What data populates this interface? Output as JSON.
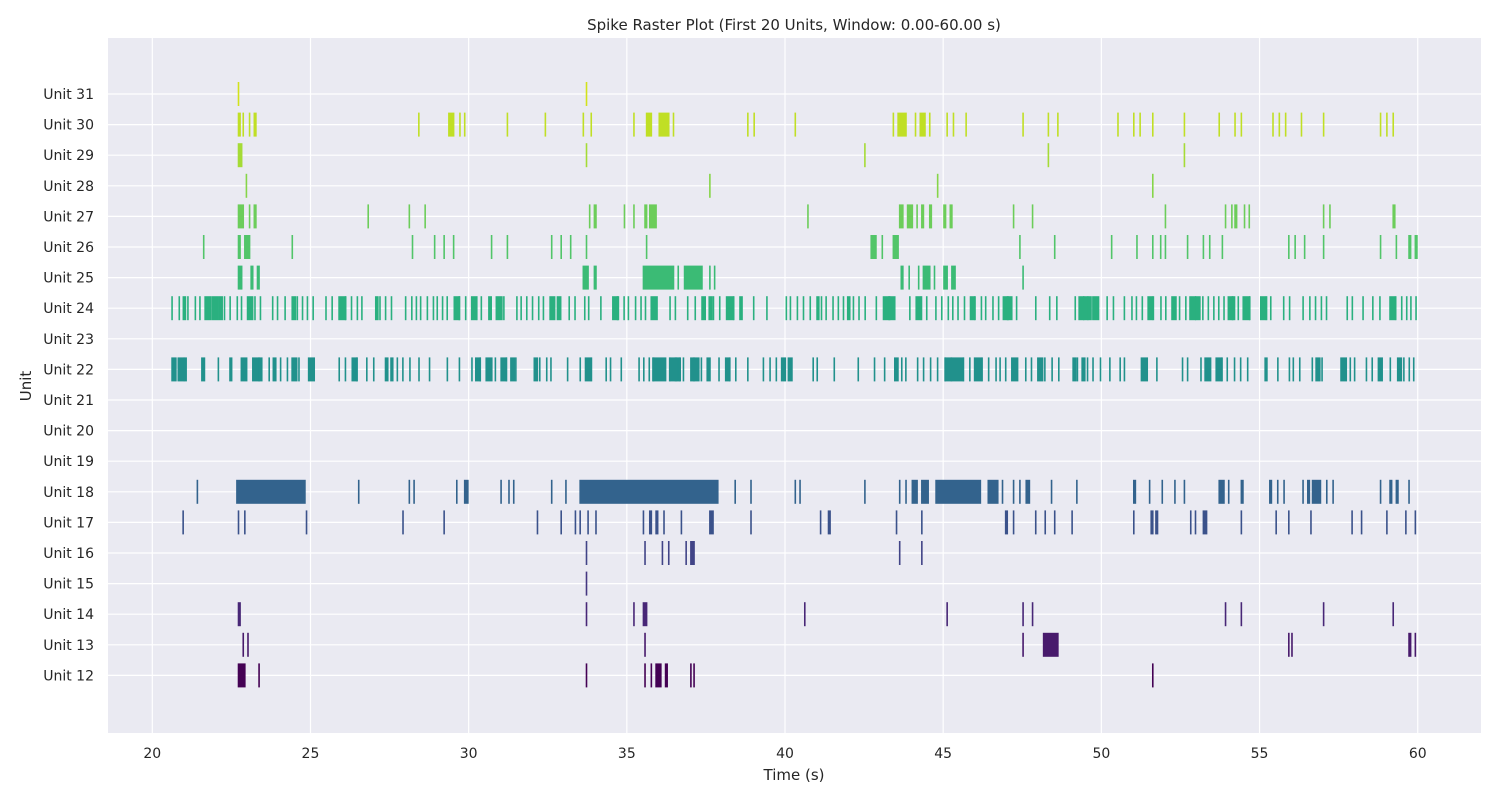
{
  "chart_data": {
    "type": "raster",
    "title": "Spike Raster Plot (First 20 Units, Window: 0.00-60.00 s)",
    "xlabel": "Time (s)",
    "ylabel": "Unit",
    "xlim": [
      18.6,
      62.0
    ],
    "xticks": [
      20,
      25,
      30,
      35,
      40,
      45,
      50,
      55,
      60
    ],
    "grid": true,
    "background": "#eaeaf2",
    "grid_color": "#ffffff",
    "colormap": "viridis",
    "units": [
      {
        "name": "Unit 31",
        "color": "#d2e21b",
        "segments": [
          [
            22.7,
            22.75
          ],
          [
            33.7,
            33.75
          ]
        ]
      },
      {
        "name": "Unit 30",
        "color": "#c0df25",
        "segments": [
          [
            22.7,
            22.8
          ],
          [
            22.85,
            22.9
          ],
          [
            23.05,
            23.1
          ],
          [
            23.2,
            23.3
          ],
          [
            28.4,
            28.45
          ],
          [
            29.35,
            29.55
          ],
          [
            29.7,
            29.75
          ],
          [
            29.85,
            29.9
          ],
          [
            31.2,
            31.25
          ],
          [
            32.4,
            32.45
          ],
          [
            33.6,
            33.65
          ],
          [
            33.85,
            33.9
          ],
          [
            35.2,
            35.25
          ],
          [
            35.6,
            35.8
          ],
          [
            36.0,
            36.35
          ],
          [
            36.45,
            36.5
          ],
          [
            38.8,
            38.85
          ],
          [
            39.0,
            39.05
          ],
          [
            40.3,
            40.35
          ],
          [
            43.4,
            43.45
          ],
          [
            43.55,
            43.85
          ],
          [
            44.1,
            44.15
          ],
          [
            44.25,
            44.45
          ],
          [
            44.55,
            44.6
          ],
          [
            45.1,
            45.15
          ],
          [
            45.3,
            45.35
          ],
          [
            45.7,
            45.75
          ],
          [
            47.5,
            47.55
          ],
          [
            48.3,
            48.35
          ],
          [
            48.6,
            48.65
          ],
          [
            50.5,
            50.55
          ],
          [
            51.0,
            51.05
          ],
          [
            51.2,
            51.25
          ],
          [
            51.6,
            51.65
          ],
          [
            52.6,
            52.65
          ],
          [
            53.7,
            53.75
          ],
          [
            54.2,
            54.25
          ],
          [
            54.4,
            54.45
          ],
          [
            55.4,
            55.45
          ],
          [
            55.6,
            55.65
          ],
          [
            55.8,
            55.85
          ],
          [
            56.3,
            56.35
          ],
          [
            57.0,
            57.05
          ],
          [
            58.8,
            58.85
          ],
          [
            59.0,
            59.05
          ],
          [
            59.2,
            59.25
          ]
        ]
      },
      {
        "name": "Unit 29",
        "color": "#a5db36",
        "segments": [
          [
            22.7,
            22.85
          ],
          [
            33.7,
            33.75
          ],
          [
            42.5,
            42.55
          ],
          [
            48.3,
            48.35
          ],
          [
            52.6,
            52.65
          ]
        ]
      },
      {
        "name": "Unit 28",
        "color": "#86d549",
        "segments": [
          [
            22.95,
            23.0
          ],
          [
            37.6,
            37.65
          ],
          [
            44.8,
            44.85
          ],
          [
            51.6,
            51.65
          ]
        ]
      },
      {
        "name": "Unit 27",
        "color": "#6ccd5a",
        "segments": [
          [
            22.7,
            22.9
          ],
          [
            23.05,
            23.1
          ],
          [
            23.2,
            23.3
          ],
          [
            26.8,
            26.85
          ],
          [
            28.1,
            28.15
          ],
          [
            28.6,
            28.65
          ],
          [
            33.8,
            33.85
          ],
          [
            33.95,
            34.05
          ],
          [
            34.9,
            34.95
          ],
          [
            35.2,
            35.25
          ],
          [
            35.55,
            35.65
          ],
          [
            35.7,
            35.95
          ],
          [
            40.7,
            40.75
          ],
          [
            43.6,
            43.75
          ],
          [
            43.85,
            44.05
          ],
          [
            44.15,
            44.2
          ],
          [
            44.3,
            44.4
          ],
          [
            44.55,
            44.65
          ],
          [
            45.0,
            45.1
          ],
          [
            45.2,
            45.3
          ],
          [
            47.2,
            47.25
          ],
          [
            47.8,
            47.85
          ],
          [
            52.0,
            52.05
          ],
          [
            53.9,
            53.95
          ],
          [
            54.1,
            54.15
          ],
          [
            54.2,
            54.3
          ],
          [
            54.5,
            54.55
          ],
          [
            54.65,
            54.7
          ],
          [
            57.0,
            57.05
          ],
          [
            57.2,
            57.25
          ],
          [
            59.2,
            59.3
          ]
        ]
      },
      {
        "name": "Unit 26",
        "color": "#52c569",
        "segments": [
          [
            21.6,
            21.65
          ],
          [
            22.7,
            22.8
          ],
          [
            22.9,
            23.1
          ],
          [
            24.4,
            24.45
          ],
          [
            28.2,
            28.25
          ],
          [
            28.9,
            28.95
          ],
          [
            29.2,
            29.25
          ],
          [
            29.5,
            29.55
          ],
          [
            30.7,
            30.75
          ],
          [
            31.2,
            31.25
          ],
          [
            32.6,
            32.65
          ],
          [
            32.9,
            32.95
          ],
          [
            33.2,
            33.25
          ],
          [
            33.7,
            33.75
          ],
          [
            35.6,
            35.65
          ],
          [
            42.7,
            42.9
          ],
          [
            43.05,
            43.1
          ],
          [
            43.4,
            43.6
          ],
          [
            47.4,
            47.45
          ],
          [
            48.5,
            48.55
          ],
          [
            50.3,
            50.35
          ],
          [
            51.1,
            51.15
          ],
          [
            51.6,
            51.65
          ],
          [
            51.85,
            51.9
          ],
          [
            52.0,
            52.05
          ],
          [
            52.7,
            52.75
          ],
          [
            53.2,
            53.25
          ],
          [
            53.4,
            53.45
          ],
          [
            53.8,
            53.85
          ],
          [
            55.9,
            55.95
          ],
          [
            56.1,
            56.15
          ],
          [
            56.4,
            56.45
          ],
          [
            57.0,
            57.05
          ],
          [
            58.8,
            58.85
          ],
          [
            59.3,
            59.35
          ],
          [
            59.7,
            59.8
          ],
          [
            59.9,
            60.0
          ]
        ]
      },
      {
        "name": "Unit 25",
        "color": "#3bbb75",
        "segments": [
          [
            22.7,
            22.85
          ],
          [
            23.1,
            23.2
          ],
          [
            23.3,
            23.4
          ],
          [
            33.6,
            33.8
          ],
          [
            33.95,
            34.05
          ],
          [
            35.5,
            36.5
          ],
          [
            36.6,
            36.65
          ],
          [
            36.8,
            37.4
          ],
          [
            37.6,
            37.65
          ],
          [
            37.75,
            37.8
          ],
          [
            43.65,
            43.75
          ],
          [
            43.9,
            43.95
          ],
          [
            44.2,
            44.25
          ],
          [
            44.35,
            44.6
          ],
          [
            44.7,
            44.75
          ],
          [
            45.0,
            45.15
          ],
          [
            45.25,
            45.4
          ],
          [
            47.5,
            47.55
          ]
        ]
      },
      {
        "name": "Unit 24",
        "color": "#2ab07f",
        "dense": true,
        "range": [
          20.6,
          60.0
        ],
        "density": 0.8,
        "seed": 24
      },
      {
        "name": "Unit 23",
        "color": "#1fa187",
        "segments": []
      },
      {
        "name": "Unit 22",
        "color": "#21918c",
        "dense": true,
        "range": [
          20.6,
          60.0
        ],
        "density": 0.65,
        "seed": 22,
        "extra": [
          [
            35.8,
            36.25
          ],
          [
            36.35,
            36.6
          ],
          [
            37.0,
            37.3
          ],
          [
            45.05,
            45.65
          ]
        ]
      },
      {
        "name": "Unit 21",
        "color": "#26828e",
        "segments": []
      },
      {
        "name": "Unit 20",
        "color": "#2c728e",
        "segments": []
      },
      {
        "name": "Unit 19",
        "color": "#31668e",
        "segments": []
      },
      {
        "name": "Unit 18",
        "color": "#33638d",
        "segments": [
          [
            21.4,
            21.45
          ],
          [
            22.65,
            24.85
          ],
          [
            26.5,
            26.55
          ],
          [
            28.1,
            28.15
          ],
          [
            28.25,
            28.3
          ],
          [
            29.6,
            29.65
          ],
          [
            29.85,
            30.0
          ],
          [
            31.0,
            31.05
          ],
          [
            31.25,
            31.3
          ],
          [
            31.4,
            31.45
          ],
          [
            32.6,
            32.65
          ],
          [
            33.05,
            33.1
          ],
          [
            33.5,
            37.9
          ],
          [
            38.4,
            38.45
          ],
          [
            38.9,
            38.95
          ],
          [
            40.3,
            40.35
          ],
          [
            40.45,
            40.5
          ],
          [
            42.5,
            42.55
          ],
          [
            43.6,
            43.65
          ],
          [
            43.8,
            43.85
          ],
          [
            44.0,
            44.2
          ],
          [
            44.3,
            44.55
          ],
          [
            44.75,
            46.2
          ],
          [
            46.4,
            46.75
          ],
          [
            46.85,
            46.9
          ],
          [
            47.2,
            47.25
          ],
          [
            47.4,
            47.45
          ],
          [
            47.6,
            47.75
          ],
          [
            48.4,
            48.45
          ],
          [
            49.2,
            49.25
          ],
          [
            51.0,
            51.1
          ],
          [
            51.5,
            51.55
          ],
          [
            51.9,
            51.95
          ],
          [
            52.3,
            52.35
          ],
          [
            52.6,
            52.65
          ],
          [
            53.7,
            53.9
          ],
          [
            54.0,
            54.05
          ],
          [
            54.4,
            54.5
          ],
          [
            55.3,
            55.4
          ],
          [
            55.55,
            55.6
          ],
          [
            55.75,
            55.8
          ],
          [
            56.35,
            56.4
          ],
          [
            56.5,
            56.6
          ],
          [
            56.65,
            56.95
          ],
          [
            57.1,
            57.15
          ],
          [
            57.3,
            57.35
          ],
          [
            58.8,
            58.85
          ],
          [
            59.1,
            59.2
          ],
          [
            59.3,
            59.4
          ],
          [
            59.7,
            59.75
          ]
        ]
      },
      {
        "name": "Unit 17",
        "color": "#3b528b",
        "segments": [
          [
            20.95,
            21.0
          ],
          [
            22.7,
            22.75
          ],
          [
            22.9,
            22.95
          ],
          [
            24.85,
            24.9
          ],
          [
            27.9,
            27.95
          ],
          [
            29.2,
            29.25
          ],
          [
            32.15,
            32.2
          ],
          [
            32.9,
            32.95
          ],
          [
            33.35,
            33.4
          ],
          [
            33.5,
            33.55
          ],
          [
            33.75,
            33.8
          ],
          [
            34.0,
            34.05
          ],
          [
            35.5,
            35.55
          ],
          [
            35.7,
            35.8
          ],
          [
            35.9,
            36.0
          ],
          [
            36.15,
            36.2
          ],
          [
            36.7,
            36.75
          ],
          [
            37.6,
            37.75
          ],
          [
            38.9,
            38.95
          ],
          [
            41.1,
            41.15
          ],
          [
            41.35,
            41.45
          ],
          [
            43.5,
            43.55
          ],
          [
            44.3,
            44.35
          ],
          [
            46.95,
            47.05
          ],
          [
            47.2,
            47.25
          ],
          [
            47.9,
            47.95
          ],
          [
            48.2,
            48.25
          ],
          [
            48.5,
            48.55
          ],
          [
            49.05,
            49.1
          ],
          [
            51.0,
            51.05
          ],
          [
            51.55,
            51.65
          ],
          [
            51.7,
            51.8
          ],
          [
            52.8,
            52.85
          ],
          [
            52.95,
            53.0
          ],
          [
            53.2,
            53.35
          ],
          [
            54.4,
            54.45
          ],
          [
            55.5,
            55.55
          ],
          [
            55.9,
            55.95
          ],
          [
            56.6,
            56.65
          ],
          [
            57.9,
            57.95
          ],
          [
            58.2,
            58.25
          ],
          [
            59.0,
            59.05
          ],
          [
            59.6,
            59.65
          ],
          [
            59.9,
            59.95
          ]
        ]
      },
      {
        "name": "Unit 16",
        "color": "#414487",
        "segments": [
          [
            33.7,
            33.75
          ],
          [
            35.55,
            35.6
          ],
          [
            36.1,
            36.15
          ],
          [
            36.3,
            36.35
          ],
          [
            36.85,
            36.9
          ],
          [
            37.0,
            37.15
          ],
          [
            43.6,
            43.65
          ],
          [
            44.3,
            44.35
          ]
        ]
      },
      {
        "name": "Unit 15",
        "color": "#453781",
        "segments": [
          [
            33.7,
            33.75
          ]
        ]
      },
      {
        "name": "Unit 14",
        "color": "#482777",
        "segments": [
          [
            22.7,
            22.8
          ],
          [
            33.7,
            33.75
          ],
          [
            35.2,
            35.25
          ],
          [
            35.5,
            35.65
          ],
          [
            40.6,
            40.65
          ],
          [
            45.1,
            45.15
          ],
          [
            47.5,
            47.55
          ],
          [
            47.8,
            47.85
          ],
          [
            53.9,
            53.95
          ],
          [
            54.4,
            54.45
          ],
          [
            57.0,
            57.05
          ],
          [
            59.2,
            59.25
          ]
        ]
      },
      {
        "name": "Unit 13",
        "color": "#481a6c",
        "segments": [
          [
            22.85,
            22.9
          ],
          [
            23.0,
            23.05
          ],
          [
            35.55,
            35.6
          ],
          [
            47.5,
            47.55
          ],
          [
            48.15,
            48.65
          ],
          [
            55.9,
            55.95
          ],
          [
            56.0,
            56.05
          ],
          [
            59.7,
            59.8
          ],
          [
            59.9,
            59.95
          ]
        ]
      },
      {
        "name": "Unit 12",
        "color": "#440154",
        "segments": [
          [
            22.7,
            22.95
          ],
          [
            23.35,
            23.4
          ],
          [
            33.7,
            33.75
          ],
          [
            35.55,
            35.6
          ],
          [
            35.75,
            35.8
          ],
          [
            35.9,
            36.1
          ],
          [
            36.2,
            36.3
          ],
          [
            37.0,
            37.05
          ],
          [
            37.1,
            37.15
          ],
          [
            51.6,
            51.65
          ]
        ]
      }
    ]
  }
}
